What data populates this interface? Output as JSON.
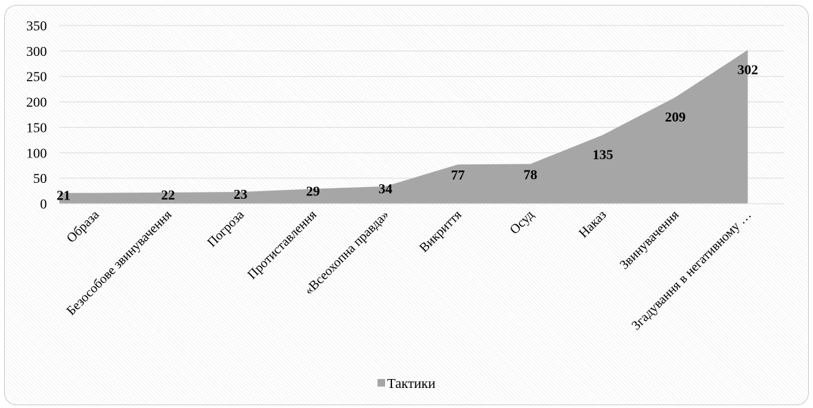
{
  "chart_data": {
    "type": "area",
    "categories": [
      "Образа",
      "Безособове звинувачення",
      "Погроза",
      "Протиставлення",
      "«Всеохопна правда»",
      "Викриття",
      "Осуд",
      "Наказ",
      "Звинувачення",
      "Згадування в негативному …"
    ],
    "series": [
      {
        "name": "Тактики",
        "values": [
          21,
          22,
          23,
          29,
          34,
          77,
          78,
          135,
          209,
          302
        ],
        "color": "#a6a6a6"
      }
    ],
    "data_labels": [
      "21",
      "22",
      "23",
      "29",
      "34",
      "77",
      "78",
      "135",
      "209",
      "302"
    ],
    "y_ticks": [
      "0",
      "50",
      "100",
      "150",
      "200",
      "250",
      "300",
      "350"
    ],
    "ylim": [
      0,
      350
    ],
    "grid": "horizontal",
    "legend_position": "bottom"
  }
}
